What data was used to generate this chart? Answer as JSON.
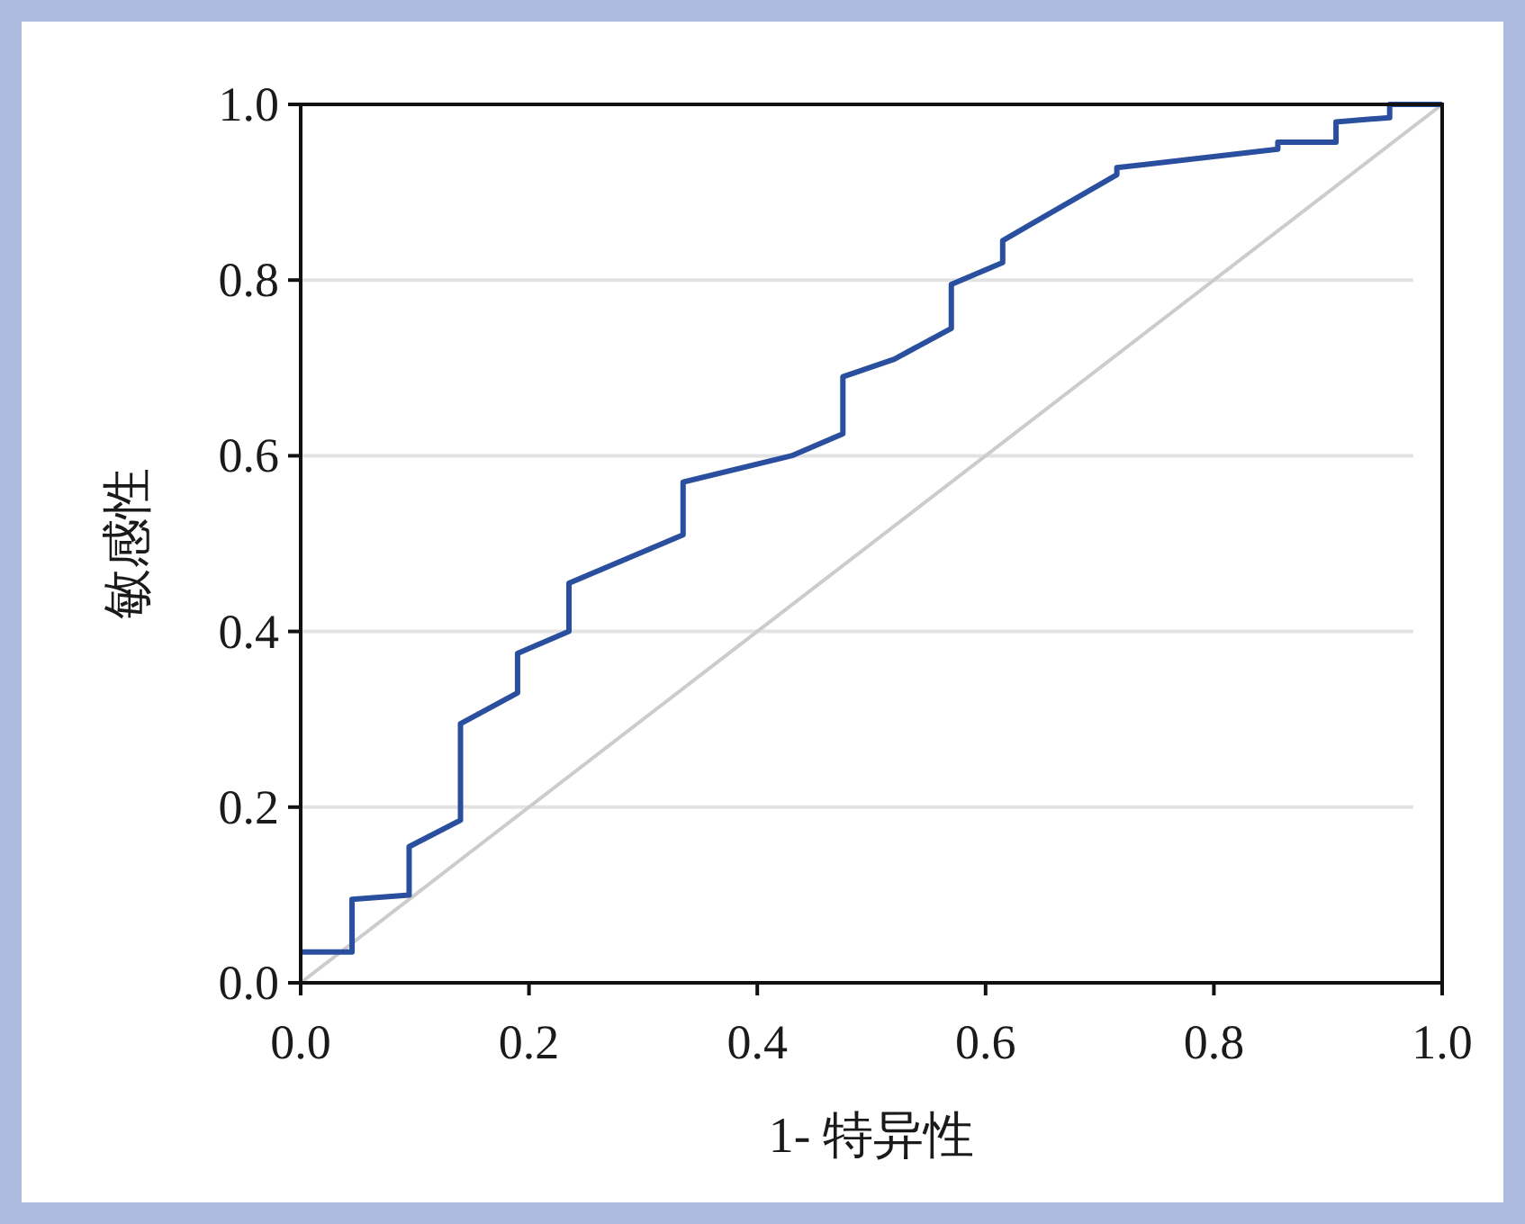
{
  "chart_data": {
    "type": "line",
    "xlabel": "1- 特异性",
    "ylabel": "敏感性",
    "xlim": [
      0,
      1
    ],
    "ylim": [
      0,
      1
    ],
    "xticks": [
      {
        "value": 0,
        "label": "0.0"
      },
      0.2,
      0.4,
      0.6,
      0.8,
      {
        "value": 1,
        "label": "1.0"
      }
    ],
    "yticks": [
      {
        "value": 0,
        "label": "0.0"
      },
      0.2,
      0.4,
      0.6,
      0.8,
      {
        "value": 1,
        "label": "1.0"
      }
    ],
    "grid": "y",
    "series": [
      {
        "color": "#2a4f9e",
        "x": [
          0,
          0.045,
          0.045,
          0.095,
          0.095,
          0.14,
          0.14,
          0.19,
          0.19,
          0.235,
          0.235,
          0.335,
          0.335,
          0.43,
          0.475,
          0.475,
          0.52,
          0.57,
          0.57,
          0.615,
          0.615,
          0.715,
          0.715,
          0.856,
          0.856,
          0.907,
          0.907,
          0.954,
          0.954,
          1
        ],
        "values": [
          0.035,
          0.035,
          0.095,
          0.1,
          0.155,
          0.185,
          0.295,
          0.33,
          0.375,
          0.4,
          0.455,
          0.51,
          0.57,
          0.6,
          0.625,
          0.69,
          0.71,
          0.745,
          0.795,
          0.82,
          0.845,
          0.92,
          0.928,
          0.949,
          0.957,
          0.957,
          0.98,
          0.985,
          1,
          1
        ]
      },
      {
        "color": "#cccccc",
        "x": [
          0,
          1
        ],
        "values": [
          0,
          1
        ]
      }
    ]
  }
}
